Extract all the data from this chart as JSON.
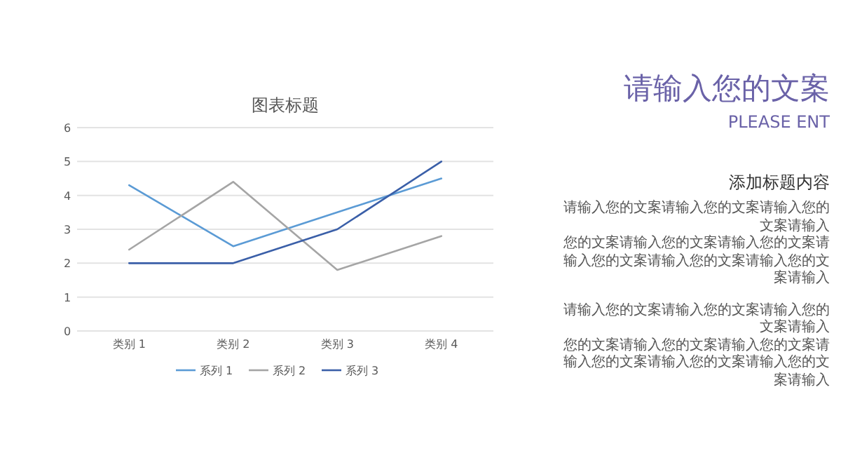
{
  "chart_data": [
    {
      "type": "line",
      "title": "图表标题",
      "categories": [
        "类别 1",
        "类别 2",
        "类别 3",
        "类别 4"
      ],
      "series": [
        {
          "name": "系列 1",
          "color": "#5b9bd5",
          "values": [
            4.3,
            2.5,
            3.5,
            4.5
          ]
        },
        {
          "name": "系列 2",
          "color": "#a5a5a5",
          "values": [
            2.4,
            4.4,
            1.8,
            2.8
          ]
        },
        {
          "name": "系列 3",
          "color": "#3a5fa8",
          "values": [
            2,
            2,
            3,
            5
          ]
        }
      ],
      "ylim": [
        0,
        6
      ],
      "yticks": [
        0,
        1,
        2,
        3,
        4,
        5,
        6
      ],
      "grid": "y",
      "legend": "bottom",
      "marker": "none",
      "line_style": "solid"
    },
    {
      "type": "other",
      "title": "请输入您的文案",
      "subtitle": "PLEASE ENT",
      "annotations": [
        "添加标题内容",
        "请输入您的文案请输入您的文案请输入您的文案请输入",
        "您的文案请输入您的文案请输入您的文案请输入您的文案请输入您的文案请输入您的文案请输入",
        "请输入您的文案请输入您的文案请输入您的文案请输入",
        "您的文案请输入您的文案请输入您的文案请输入您的文案请输入您的文案请输入您的文案请输入"
      ]
    }
  ]
}
